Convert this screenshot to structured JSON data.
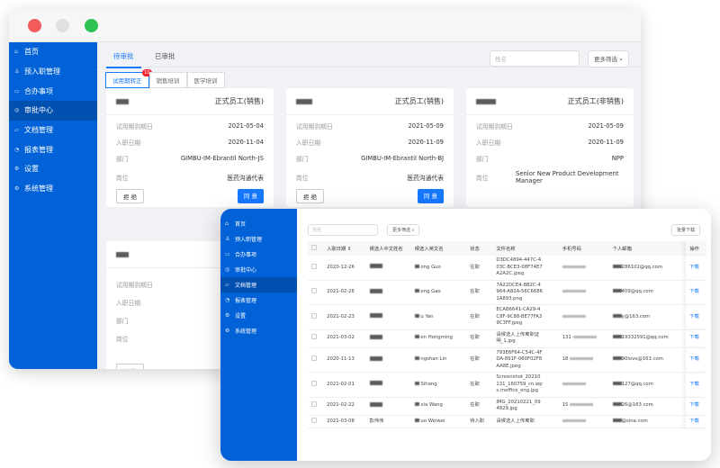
{
  "window_controls": {
    "close": "#f25b5b",
    "minimize": "#e0e0e0",
    "maximize": "#2ec353"
  },
  "accent": "#1677ff",
  "sidebar_color": "#0062d6",
  "sidebar": {
    "items": [
      {
        "label": "首页",
        "icon": "home-icon"
      },
      {
        "label": "预入职管理",
        "icon": "user-icon"
      },
      {
        "label": "合办事项",
        "icon": "clipboard-icon"
      },
      {
        "label": "审批中心",
        "icon": "approve-icon"
      },
      {
        "label": "文档管理",
        "icon": "folder-icon"
      },
      {
        "label": "报表管理",
        "icon": "chart-icon"
      },
      {
        "label": "设置",
        "icon": "gear-icon"
      },
      {
        "label": "系统管理",
        "icon": "system-icon"
      }
    ]
  },
  "back": {
    "tabs": [
      "待审批",
      "已审批"
    ],
    "search_placeholder": "姓名",
    "more_filter": "更多筛选",
    "subtabs": [
      {
        "label": "试用期转正",
        "badge": "10"
      },
      {
        "label": "销售培训"
      },
      {
        "label": "医学培训"
      }
    ],
    "labels": {
      "probation_end": "试用期到期日",
      "hire_date": "入职日期",
      "dept": "部门",
      "position": "岗位"
    },
    "reject": "拒 绝",
    "approve": "同 意",
    "cards": [
      {
        "type": "正式员工(销售)",
        "probation_end": "2021-05-04",
        "hire_date": "2020-11-04",
        "dept": "GIMBU-IM-Ebrantil North-JS",
        "position": "医药沟通代表"
      },
      {
        "type": "正式员工(销售)",
        "probation_end": "2021-05-09",
        "hire_date": "2020-11-09",
        "dept": "GIMBU-IM-Ebrantil North-BJ",
        "position": "医药沟通代表"
      },
      {
        "type": "正式员工(非销售)",
        "probation_end": "2021-05-09",
        "hire_date": "2020-11-09",
        "dept": "NPP",
        "position": "Senior New Product Development Manager"
      }
    ]
  },
  "front": {
    "search_placeholder": "姓名",
    "more_filter": "更多筛选",
    "batch_download": "批量下载",
    "columns": [
      "入职日期",
      "候选人中文姓名",
      "候选人英文名",
      "状态",
      "文件名称",
      "手机号码",
      "个人邮箱",
      "操作"
    ],
    "download": "下载",
    "rows": [
      {
        "date": "2020-12-26",
        "en": "ong Guo",
        "status": "在职",
        "file": "D3DC4894-447C-403C-BCE3-08F74E7A2A2C.jpeg",
        "phone": "",
        "email": "286102@qq.com"
      },
      {
        "date": "2021-02-26",
        "en": "eng Gao",
        "status": "在职",
        "file": "7A22DCE4-8B2C-4964-A82A-56C66861A893.png",
        "phone": "",
        "email": "409@qq.com"
      },
      {
        "date": "2021-02-23",
        "en": "u Yan",
        "status": "在职",
        "file": "ECAB6641-CA29-4C8F-9C88-BE77FA39C3FF.jpeg",
        "phone": "",
        "email": "y@163.com"
      },
      {
        "date": "2021-03-02",
        "en": "en Hongming",
        "status": "在职",
        "file": "请候选人上传离职证明_1.jpg",
        "phone": "131",
        "email": "19332591@qq.com"
      },
      {
        "date": "2020-11-13",
        "en": "ngshan Lin",
        "status": "在职",
        "file": "793E6F64-C54C-4FDA-891F-060F02F8AA8E.jpeg",
        "phone": "18",
        "email": "90love@163.com"
      },
      {
        "date": "2021-02-01",
        "en": "Sihang",
        "status": "在职",
        "file": "Screenshot_20210131_160759_cn.wps.moffice_eng.jpg",
        "phone": "",
        "email": "127@qq.com"
      },
      {
        "date": "2021-02-22",
        "en": "xia Wang",
        "status": "在职",
        "file": "IMG_20210221_094829.jpg",
        "phone": "15",
        "email": "26@163.com"
      },
      {
        "date": "2021-03-08",
        "cn": "彭伟伟",
        "en": "uo Weiwei",
        "status": "待入职",
        "file": "请候选人上传离职",
        "phone": "",
        "email": "@sina.com"
      }
    ]
  }
}
